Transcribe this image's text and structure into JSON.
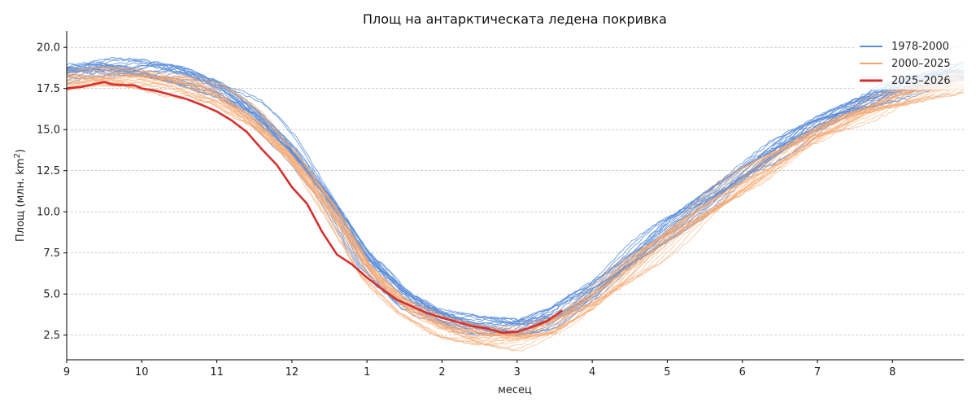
{
  "chart_data": {
    "type": "line",
    "title": "Площ на антарктическата ледена покривка",
    "xlabel": "месец",
    "ylabel": "Площ (млн. km²)",
    "ylabel_main": "Площ (млн. km",
    "ylabel_sup": "2",
    "ylabel_close": ")",
    "xlim": [
      0,
      11.95
    ],
    "ylim": [
      1.0,
      21.0
    ],
    "x_ticks": [
      0,
      1,
      2,
      3,
      4,
      5,
      6,
      7,
      8,
      9,
      10,
      11
    ],
    "x_tick_labels": [
      "9",
      "10",
      "11",
      "12",
      "1",
      "2",
      "3",
      "4",
      "5",
      "6",
      "7",
      "8"
    ],
    "y_ticks": [
      2.5,
      5.0,
      7.5,
      10.0,
      12.5,
      15.0,
      17.5,
      20.0
    ],
    "y_tick_labels": [
      "2.5",
      "5.0",
      "7.5",
      "10.0",
      "12.5",
      "15.0",
      "17.5",
      "20.0"
    ],
    "grid": "horizontal-dashed",
    "legend_position": "top-right",
    "groups": [
      {
        "name": "1978-2000",
        "color": "#5b8fd9",
        "count": 22
      },
      {
        "name": "2000–2025",
        "color": "#f5a56b",
        "count": 25
      },
      {
        "name": "2025–2026",
        "color": "#d62f2f",
        "count": 1
      }
    ],
    "climatology": {
      "x": [
        0,
        0.5,
        1,
        1.5,
        2,
        2.5,
        3,
        3.5,
        4,
        4.5,
        5,
        5.5,
        6,
        6.5,
        7,
        7.5,
        8,
        8.5,
        9,
        9.5,
        10,
        10.5,
        11,
        11.5,
        11.95
      ],
      "y": [
        18.3,
        18.6,
        18.5,
        18.2,
        17.4,
        15.9,
        13.6,
        10.5,
        6.8,
        4.6,
        3.4,
        2.9,
        2.8,
        3.5,
        5.0,
        6.9,
        8.7,
        10.4,
        12.1,
        13.7,
        15.2,
        16.3,
        17.2,
        17.9,
        18.3
      ]
    },
    "current_season": {
      "name": "2025–2026",
      "x": [
        0,
        0.2,
        0.4,
        0.5,
        0.6,
        0.8,
        0.9,
        1.0,
        1.2,
        1.4,
        1.6,
        1.8,
        2.0,
        2.2,
        2.4,
        2.6,
        2.8,
        3.0,
        3.2,
        3.4,
        3.6,
        3.8,
        4.0,
        4.2,
        4.4,
        4.6,
        4.8,
        5.0,
        5.2,
        5.4,
        5.6,
        5.8,
        6.0,
        6.2,
        6.4,
        6.6
      ],
      "y": [
        17.5,
        17.6,
        17.8,
        17.9,
        17.75,
        17.7,
        17.7,
        17.5,
        17.35,
        17.1,
        16.85,
        16.5,
        16.1,
        15.55,
        14.85,
        13.8,
        12.85,
        11.5,
        10.5,
        8.8,
        7.4,
        6.8,
        6.0,
        5.3,
        4.65,
        4.25,
        3.85,
        3.55,
        3.3,
        3.05,
        2.9,
        2.65,
        2.7,
        3.0,
        3.35,
        4.0
      ]
    }
  }
}
